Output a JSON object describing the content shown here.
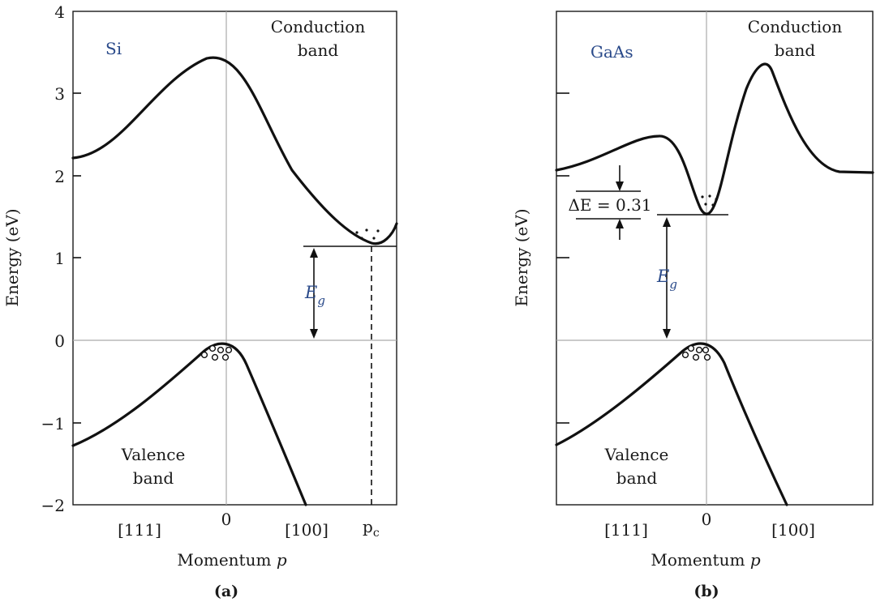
{
  "figure": {
    "y_axis_title": "Energy (eV)",
    "x_axis_title_text": "Momentum ",
    "x_axis_title_var": "p"
  },
  "panel_a": {
    "label": "(a)",
    "material": "Si",
    "conduction_line1": "Conduction",
    "conduction_line2": "band",
    "valence_line1": "Valence",
    "valence_line2": "band",
    "y_ticks": [
      "4",
      "3",
      "2",
      "1",
      "0",
      "−1",
      "−2"
    ],
    "x_ticks": [
      "[111]",
      "0",
      "[100]"
    ],
    "pc_label": "p",
    "pc_sub": "c",
    "eg_label": "E",
    "eg_sub": "g"
  },
  "panel_b": {
    "label": "(b)",
    "material": "GaAs",
    "conduction_line1": "Conduction",
    "conduction_line2": "band",
    "valence_line1": "Valence",
    "valence_line2": "band",
    "x_ticks": [
      "[111]",
      "0",
      "[100]"
    ],
    "eg_label": "E",
    "eg_sub": "g",
    "delta_e": "ΔE = 0.31"
  },
  "colors": {
    "accent": "#2a4a8a",
    "ink": "#111111",
    "gridline": "#aaaaaa"
  }
}
